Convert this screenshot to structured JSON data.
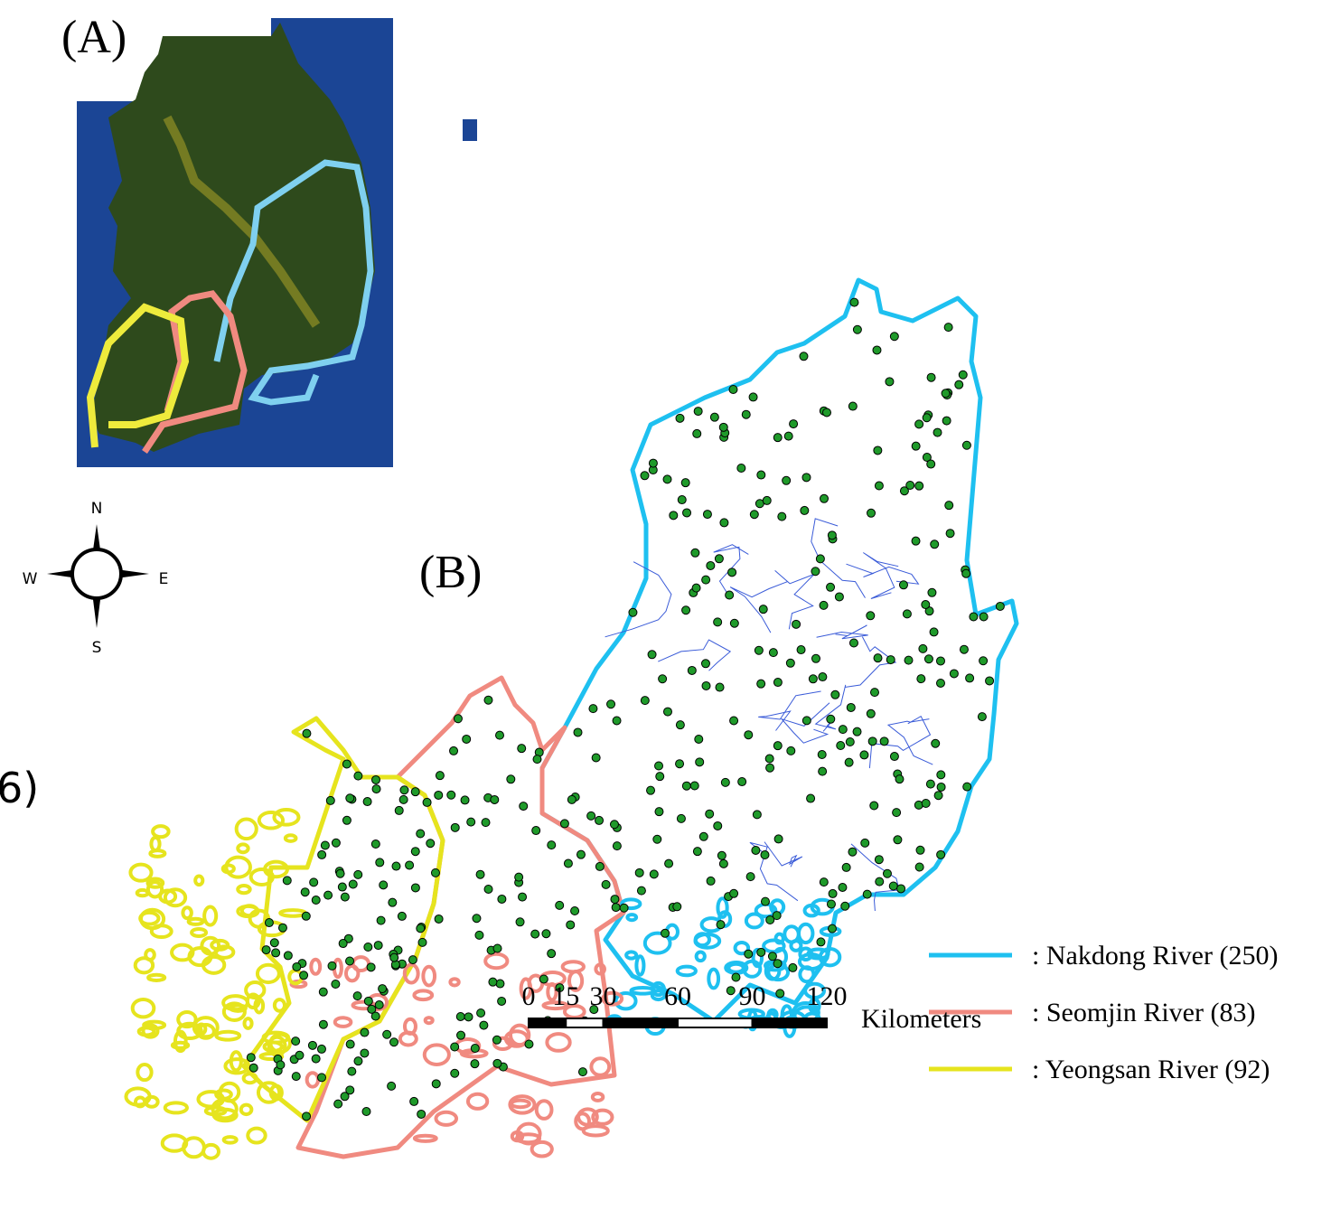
{
  "panels": {
    "inset_label": "(A)",
    "main_label": "(B)",
    "cut_label": "6)"
  },
  "compass": {
    "north": "N",
    "south": "S",
    "east": "E",
    "west": "W"
  },
  "legend": [
    {
      "label": ": Nakdong River (250)",
      "color": "#1ec0f0"
    },
    {
      "label": ": Seomjin River (83)",
      "color": "#f08a80"
    },
    {
      "label": ": Yeongsan River (92)",
      "color": "#e6e41e"
    }
  ],
  "scale_bar": {
    "ticks": [
      0,
      15,
      30,
      60,
      90,
      120
    ],
    "unit": "Kilometers"
  }
}
